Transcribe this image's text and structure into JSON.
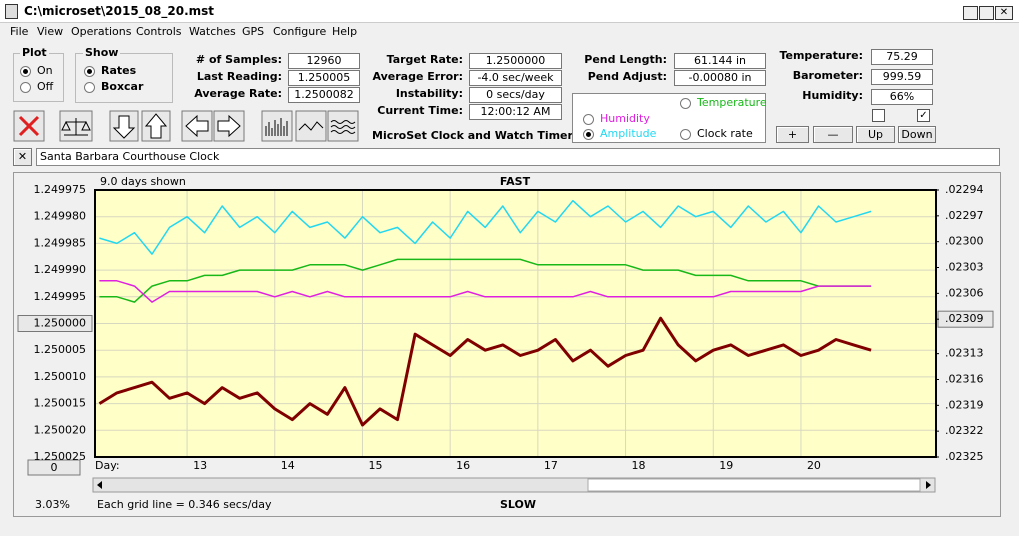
{
  "window": {
    "title": "C:\\microset\\2015_08_20.mst"
  },
  "menu": [
    "File",
    "View",
    "Operations",
    "Controls",
    "Watches",
    "GPS",
    "Configure",
    "Help"
  ],
  "plot_group": {
    "label": "Plot",
    "options": [
      "On",
      "Off"
    ]
  },
  "show_group": {
    "label": "Show",
    "options": [
      "Rates",
      "Boxcar"
    ]
  },
  "fields": [
    {
      "label": "# of Samples:",
      "value": "12960"
    },
    {
      "label": "Last Reading:",
      "value": "1.250005"
    },
    {
      "label": "Average Rate:",
      "value": "1.2500082"
    },
    {
      "label": "Target Rate:",
      "value": "1.2500000"
    },
    {
      "label": "Average Error:",
      "value": "-4.0 sec/week"
    },
    {
      "label": "Instability:",
      "value": "0 secs/day"
    },
    {
      "label": "Current Time:",
      "value": "12:00:12 AM"
    },
    {
      "label": "Pend Length:",
      "value": "61.144 in"
    },
    {
      "label": "Pend Adjust:",
      "value": "-0.00080 in"
    },
    {
      "label": "Temperature:",
      "value": "75.29"
    },
    {
      "label": "Barometer:",
      "value": "999.59"
    },
    {
      "label": "Humidity:",
      "value": "66%"
    }
  ],
  "app_label": "MicroSet Clock and Watch Timer",
  "trace_options": [
    "Temperature",
    "Humidity",
    "Amplitude",
    "Clock rate"
  ],
  "buttons": [
    "+",
    "—",
    "Up",
    "Down"
  ],
  "clock_name": "Santa Barbara Courthouse Clock",
  "chart_data": {
    "type": "line",
    "days_shown": "9.0 days shown",
    "top_label": "FAST",
    "bottom_label": "SLOW",
    "x_label": "Day:",
    "grid_note": "Each grid line = 0.346 secs/day",
    "percent": "3.03%",
    "offset_button": "0",
    "grid": true,
    "xlim": [
      11.95,
      21.54
    ],
    "xticks": [
      13,
      14,
      15,
      16,
      17,
      18,
      19,
      20
    ],
    "ylim": [
      1.249975,
      1.250025
    ],
    "yticks": [
      {
        "value": 1.249975,
        "label": "1.249975"
      },
      {
        "value": 1.24998,
        "label": "1.249980"
      },
      {
        "value": 1.249985,
        "label": "1.249985"
      },
      {
        "value": 1.24999,
        "label": "1.249990"
      },
      {
        "value": 1.249995,
        "label": "1.249995"
      },
      {
        "value": 1.25,
        "label": "1.250000"
      },
      {
        "value": 1.250005,
        "label": "1.250005"
      },
      {
        "value": 1.25001,
        "label": "1.250010"
      },
      {
        "value": 1.250015,
        "label": "1.250015"
      },
      {
        "value": 1.25002,
        "label": "1.250020"
      },
      {
        "value": 1.250025,
        "label": "1.250025"
      }
    ],
    "y2lim": [
      0.02294,
      0.02325
    ],
    "y2ticks": [
      {
        "value": 0.02294,
        "label": ".02294"
      },
      {
        "value": 0.02297,
        "label": ".02297"
      },
      {
        "value": 0.023,
        "label": ".02300"
      },
      {
        "value": 0.02303,
        "label": ".02303"
      },
      {
        "value": 0.02306,
        "label": ".02306"
      },
      {
        "value": 0.02309,
        "label": ".02309"
      },
      {
        "value": 0.02313,
        "label": ".02313"
      },
      {
        "value": 0.02316,
        "label": ".02316"
      },
      {
        "value": 0.02319,
        "label": ".02319"
      },
      {
        "value": 0.02322,
        "label": ".02322"
      },
      {
        "value": 0.02325,
        "label": ".02325"
      }
    ],
    "x": [
      12,
      12.2,
      12.4,
      12.6,
      12.8,
      13,
      13.2,
      13.4,
      13.6,
      13.8,
      14,
      14.2,
      14.4,
      14.6,
      14.8,
      15,
      15.2,
      15.4,
      15.6,
      15.8,
      16,
      16.2,
      16.4,
      16.6,
      16.8,
      17,
      17.2,
      17.4,
      17.6,
      17.8,
      18,
      18.2,
      18.4,
      18.6,
      18.8,
      19,
      19.2,
      19.4,
      19.6,
      19.8,
      20,
      20.2,
      20.4,
      20.6,
      20.8
    ],
    "series": [
      {
        "name": "Amplitude",
        "color": "#22d8f0",
        "width": 1.5,
        "values": [
          1.249984,
          1.249985,
          1.249983,
          1.249987,
          1.249982,
          1.24998,
          1.249983,
          1.249978,
          1.249982,
          1.24998,
          1.249983,
          1.249979,
          1.249982,
          1.249981,
          1.249984,
          1.24998,
          1.249983,
          1.249982,
          1.249985,
          1.249981,
          1.249984,
          1.249979,
          1.249982,
          1.249978,
          1.249983,
          1.249979,
          1.249981,
          1.249977,
          1.24998,
          1.249978,
          1.249981,
          1.249979,
          1.249982,
          1.249978,
          1.24998,
          1.249979,
          1.249982,
          1.249978,
          1.249981,
          1.249979,
          1.249983,
          1.249978,
          1.249981,
          1.24998,
          1.249979
        ]
      },
      {
        "name": "Temperature",
        "color": "#18b818",
        "width": 1.5,
        "values": [
          1.249995,
          1.249995,
          1.249996,
          1.249993,
          1.249992,
          1.249992,
          1.249991,
          1.249991,
          1.24999,
          1.24999,
          1.24999,
          1.24999,
          1.249989,
          1.249989,
          1.249989,
          1.24999,
          1.249989,
          1.249988,
          1.249988,
          1.249988,
          1.249988,
          1.249988,
          1.249988,
          1.249988,
          1.249988,
          1.249989,
          1.249989,
          1.249989,
          1.249989,
          1.249989,
          1.249989,
          1.24999,
          1.24999,
          1.24999,
          1.249991,
          1.249991,
          1.249991,
          1.249992,
          1.249992,
          1.249992,
          1.249992,
          1.249993,
          1.249993,
          1.249993,
          1.249993
        ]
      },
      {
        "name": "Humidity",
        "color": "#e020e0",
        "width": 1.5,
        "values": [
          1.249992,
          1.249992,
          1.249993,
          1.249996,
          1.249994,
          1.249994,
          1.249994,
          1.249994,
          1.249994,
          1.249994,
          1.249995,
          1.249994,
          1.249995,
          1.249994,
          1.249995,
          1.249995,
          1.249995,
          1.249995,
          1.249995,
          1.249995,
          1.249995,
          1.249994,
          1.249995,
          1.249995,
          1.249995,
          1.249995,
          1.249995,
          1.249995,
          1.249994,
          1.249995,
          1.249995,
          1.249995,
          1.249995,
          1.249995,
          1.249995,
          1.249995,
          1.249994,
          1.249994,
          1.249994,
          1.249994,
          1.249994,
          1.249993,
          1.249993,
          1.249993,
          1.249993
        ]
      },
      {
        "name": "Clock rate",
        "color": "#800000",
        "width": 3,
        "values": [
          1.250015,
          1.250013,
          1.250012,
          1.250011,
          1.250014,
          1.250013,
          1.250015,
          1.250012,
          1.250014,
          1.250013,
          1.250016,
          1.250018,
          1.250015,
          1.250017,
          1.250012,
          1.250019,
          1.250016,
          1.250018,
          1.250002,
          1.250004,
          1.250006,
          1.250003,
          1.250005,
          1.250004,
          1.250006,
          1.250005,
          1.250003,
          1.250007,
          1.250005,
          1.250008,
          1.250006,
          1.250005,
          1.249999,
          1.250004,
          1.250007,
          1.250005,
          1.250004,
          1.250006,
          1.250005,
          1.250004,
          1.250006,
          1.250005,
          1.250003,
          1.250004,
          1.250005
        ]
      }
    ]
  }
}
